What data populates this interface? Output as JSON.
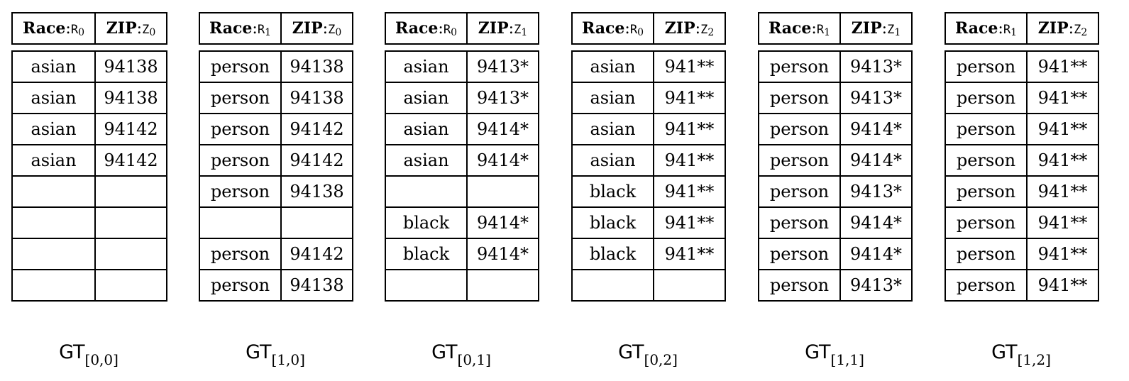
{
  "gts": [
    {
      "header": {
        "col1": {
          "name": "Race",
          "sep": ":",
          "sym": "R",
          "sub": "0"
        },
        "col2": {
          "name": "ZIP",
          "sep": ":",
          "sym": "Z",
          "sub": "0"
        }
      },
      "rows": [
        [
          "asian",
          "94138"
        ],
        [
          "asian",
          "94138"
        ],
        [
          "asian",
          "94142"
        ],
        [
          "asian",
          "94142"
        ],
        [
          "",
          ""
        ],
        [
          "",
          ""
        ],
        [
          "",
          ""
        ],
        [
          "",
          ""
        ]
      ],
      "caption": {
        "main": "GT",
        "sub": "[0,0]"
      }
    },
    {
      "header": {
        "col1": {
          "name": "Race",
          "sep": ":",
          "sym": "R",
          "sub": "1"
        },
        "col2": {
          "name": "ZIP",
          "sep": ":",
          "sym": "Z",
          "sub": "0"
        }
      },
      "rows": [
        [
          "person",
          "94138"
        ],
        [
          "person",
          "94138"
        ],
        [
          "person",
          "94142"
        ],
        [
          "person",
          "94142"
        ],
        [
          "person",
          "94138"
        ],
        [
          "",
          ""
        ],
        [
          "person",
          "94142"
        ],
        [
          "person",
          "94138"
        ]
      ],
      "caption": {
        "main": "GT",
        "sub": "[1,0]"
      }
    },
    {
      "header": {
        "col1": {
          "name": "Race",
          "sep": ":",
          "sym": "R",
          "sub": "0"
        },
        "col2": {
          "name": "ZIP",
          "sep": ":",
          "sym": "Z",
          "sub": "1"
        }
      },
      "rows": [
        [
          "asian",
          "9413*"
        ],
        [
          "asian",
          "9413*"
        ],
        [
          "asian",
          "9414*"
        ],
        [
          "asian",
          "9414*"
        ],
        [
          "",
          ""
        ],
        [
          "black",
          "9414*"
        ],
        [
          "black",
          "9414*"
        ],
        [
          "",
          ""
        ]
      ],
      "caption": {
        "main": "GT",
        "sub": "[0,1]"
      }
    },
    {
      "header": {
        "col1": {
          "name": "Race",
          "sep": ":",
          "sym": "R",
          "sub": "0"
        },
        "col2": {
          "name": "ZIP",
          "sep": ":",
          "sym": "Z",
          "sub": "2"
        }
      },
      "rows": [
        [
          "asian",
          "941**"
        ],
        [
          "asian",
          "941**"
        ],
        [
          "asian",
          "941**"
        ],
        [
          "asian",
          "941**"
        ],
        [
          "black",
          "941**"
        ],
        [
          "black",
          "941**"
        ],
        [
          "black",
          "941**"
        ],
        [
          "",
          ""
        ]
      ],
      "caption": {
        "main": "GT",
        "sub": "[0,2]"
      }
    },
    {
      "header": {
        "col1": {
          "name": "Race",
          "sep": ":",
          "sym": "R",
          "sub": "1"
        },
        "col2": {
          "name": "ZIP",
          "sep": ":",
          "sym": "Z",
          "sub": "1"
        }
      },
      "rows": [
        [
          "person",
          "9413*"
        ],
        [
          "person",
          "9413*"
        ],
        [
          "person",
          "9414*"
        ],
        [
          "person",
          "9414*"
        ],
        [
          "person",
          "9413*"
        ],
        [
          "person",
          "9414*"
        ],
        [
          "person",
          "9414*"
        ],
        [
          "person",
          "9413*"
        ]
      ],
      "caption": {
        "main": "GT",
        "sub": "[1,1]"
      }
    },
    {
      "header": {
        "col1": {
          "name": "Race",
          "sep": ":",
          "sym": "R",
          "sub": "1"
        },
        "col2": {
          "name": "ZIP",
          "sep": ":",
          "sym": "Z",
          "sub": "2"
        }
      },
      "rows": [
        [
          "person",
          "941**"
        ],
        [
          "person",
          "941**"
        ],
        [
          "person",
          "941**"
        ],
        [
          "person",
          "941**"
        ],
        [
          "person",
          "941**"
        ],
        [
          "person",
          "941**"
        ],
        [
          "person",
          "941**"
        ],
        [
          "person",
          "941**"
        ]
      ],
      "caption": {
        "main": "GT",
        "sub": "[1,2]"
      }
    }
  ]
}
